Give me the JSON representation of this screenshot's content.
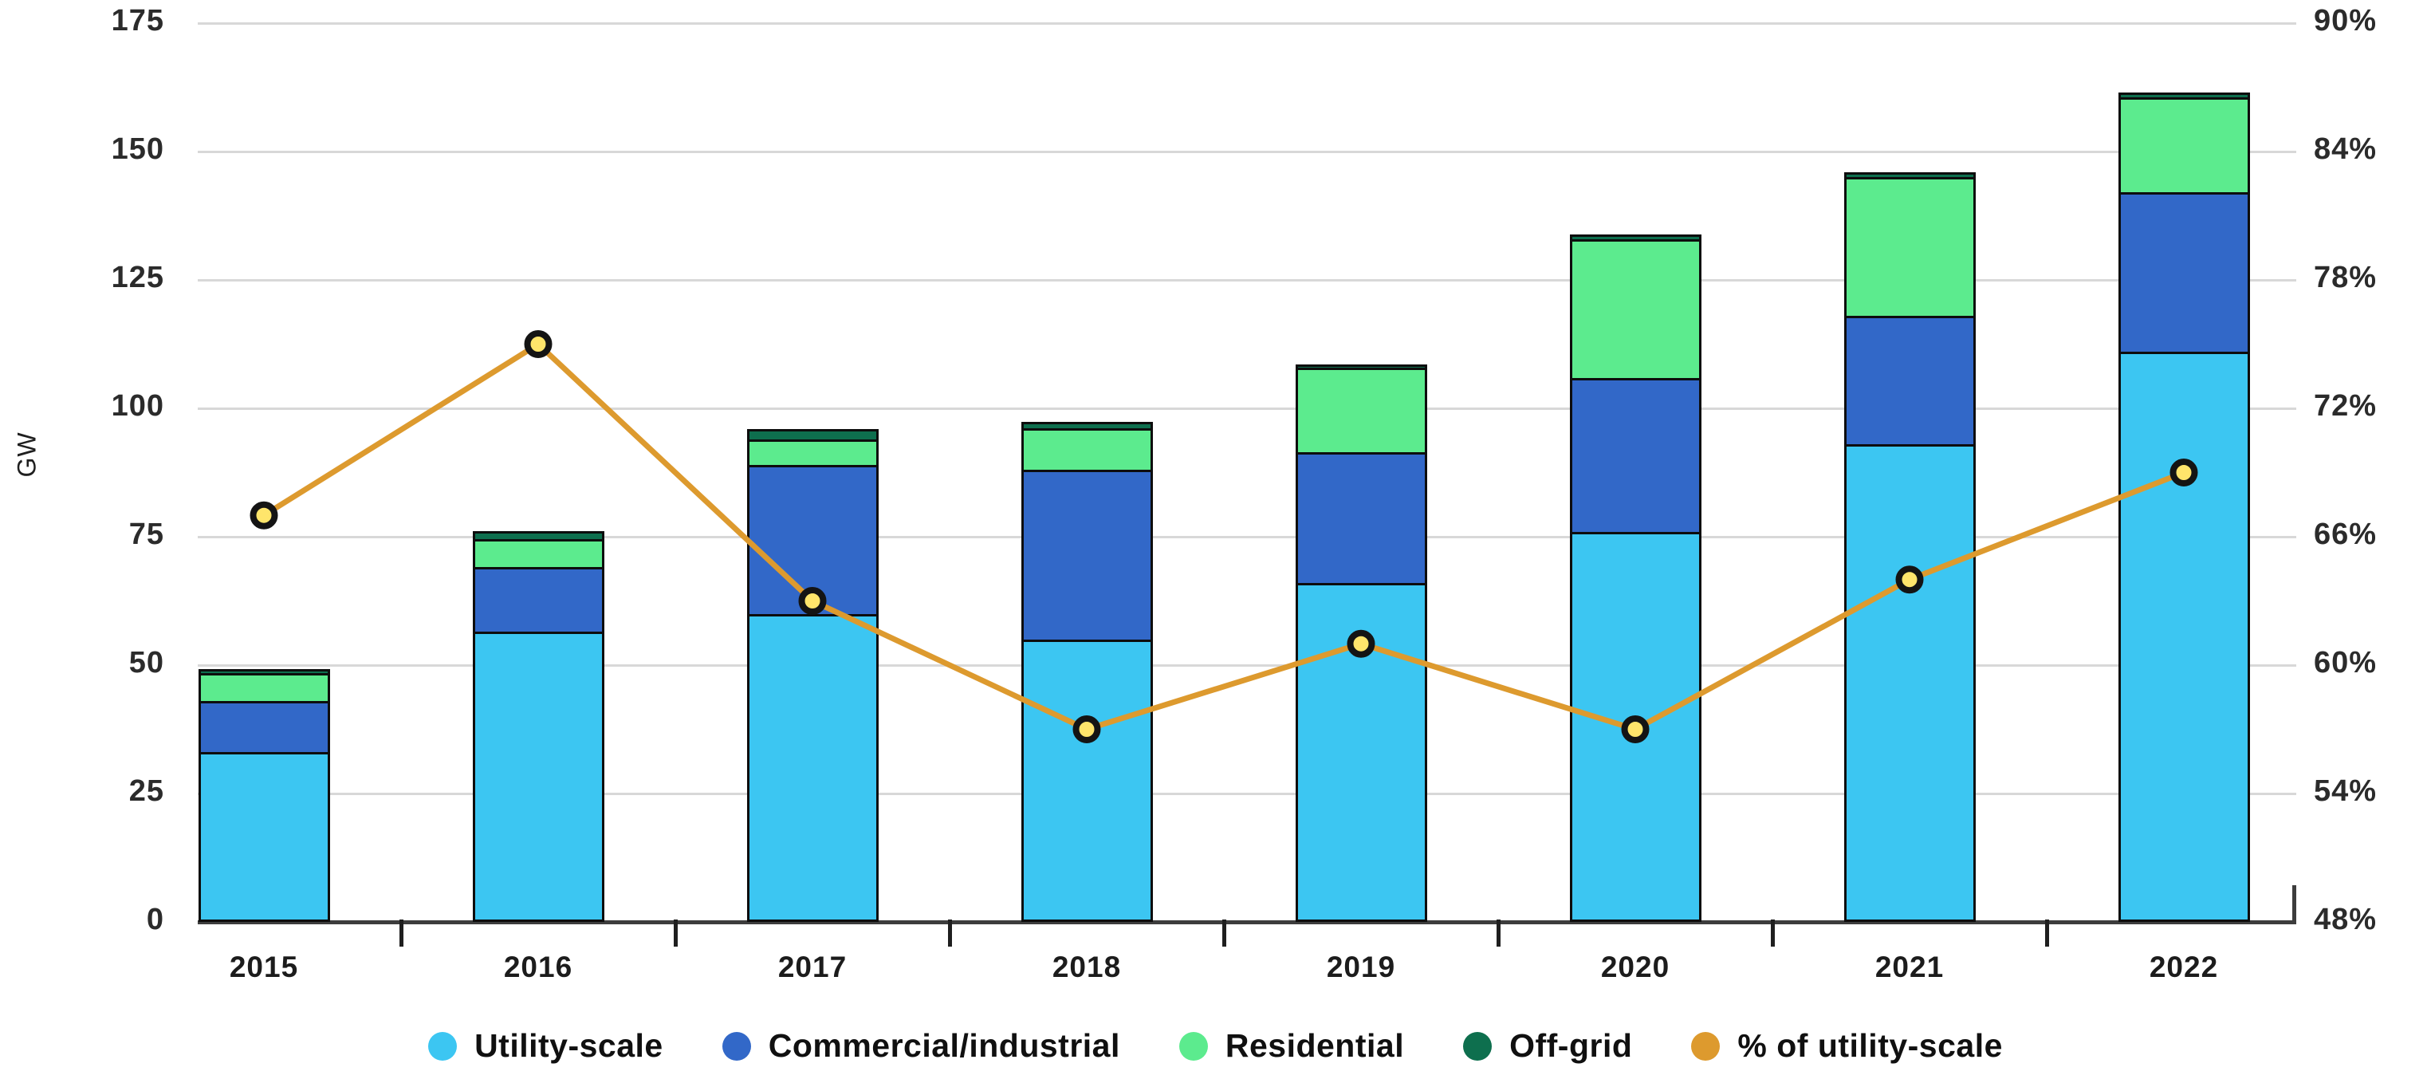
{
  "chart_data": {
    "type": "bar",
    "subtype": "stacked-bars-with-line-overlay",
    "categories": [
      "2015",
      "2016",
      "2017",
      "2018",
      "2019",
      "2020",
      "2021",
      "2022"
    ],
    "series": [
      {
        "name": "Utility-scale",
        "color": "#3cc6f2",
        "values": [
          33.0,
          56.5,
          60.0,
          55.0,
          66.0,
          76.0,
          93.0,
          111.0
        ]
      },
      {
        "name": "Commercial/industrial",
        "color": "#3268c8",
        "values": [
          10.0,
          12.5,
          29.0,
          33.0,
          25.5,
          30.0,
          25.0,
          31.0
        ]
      },
      {
        "name": "Residential",
        "color": "#5ceb8e",
        "values": [
          5.5,
          5.5,
          5.0,
          8.0,
          16.5,
          27.0,
          27.0,
          18.5
        ]
      },
      {
        "name": "Off-grid",
        "color": "#0e6f4e",
        "values": [
          0.7,
          1.5,
          2.0,
          1.2,
          0.5,
          1.0,
          1.0,
          1.0
        ]
      }
    ],
    "line_series": {
      "name": "% of utility-scale",
      "color": "#dd9a2e",
      "marker_fill": "#ffe56b",
      "marker_ring": "#141414",
      "axis": "right",
      "values": [
        67,
        75,
        63,
        57,
        61,
        57,
        64,
        69
      ]
    },
    "title": "",
    "xlabel": "",
    "ylabel": "GW",
    "ylim": [
      0,
      175
    ],
    "yticks_left_top_to_bottom": [
      "175",
      "150",
      "125",
      "100",
      "75",
      "50",
      "25",
      "0"
    ],
    "y2lim": [
      48,
      90
    ],
    "yticks_right_top_to_bottom": [
      "90%",
      "84%",
      "78%",
      "72%",
      "66%",
      "60%",
      "54%",
      "48%"
    ],
    "grid": "horizontal",
    "legend_position": "bottom-center",
    "legend_items": [
      "Utility-scale",
      "Commercial/industrial",
      "Residential",
      "Off-grid",
      "% of utility-scale"
    ]
  },
  "colors": {
    "background": "#ffffff",
    "gridline": "#d8d8d8",
    "axis_line": "#3d3d3d",
    "tick_text": "#2b2b2b",
    "utility_scale": "#3cc6f2",
    "commercial_industrial": "#3268c8",
    "residential": "#5ceb8e",
    "off_grid": "#0e6f4e",
    "pct_line": "#dd9a2e",
    "marker_fill": "#ffe56b"
  }
}
